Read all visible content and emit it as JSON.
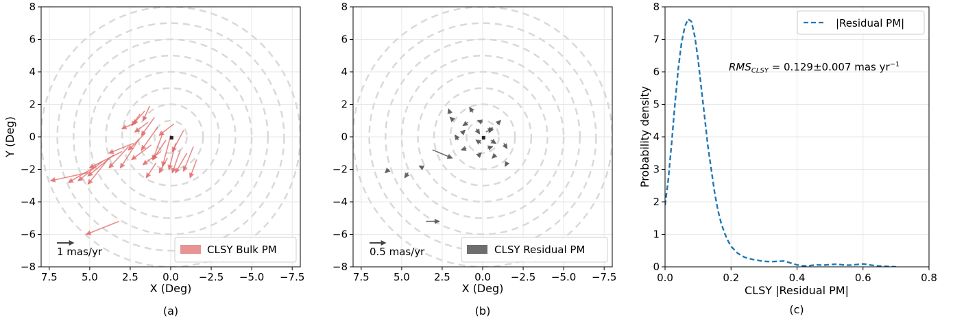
{
  "chart_data": [
    {
      "type": "scatter",
      "subtype": "quiver",
      "panel_label": "(a)",
      "xlabel": "X (Deg)",
      "ylabel": "Y (Deg)",
      "xlim": [
        8,
        -8
      ],
      "ylim": [
        -8,
        8
      ],
      "x_ticks": [
        "7.5",
        "5.0",
        "2.5",
        "0.0",
        "−2.5",
        "−5.0",
        "−7.5"
      ],
      "y_ticks": [
        "8",
        "6",
        "4",
        "2",
        "0",
        "−2",
        "−4",
        "−6",
        "−8"
      ],
      "grid": true,
      "circle_radii": [
        1,
        2,
        3,
        4,
        5,
        6,
        7,
        8
      ],
      "legend": {
        "label": "CLSY Bulk PM",
        "position": "lower right"
      },
      "scale_key": {
        "label": "1 mas/yr",
        "length": 1
      },
      "arrow_color": "#e06666",
      "arrows_note": "arrows point toward lower-left; displacements given in degrees on the plot",
      "arrows": [
        {
          "x": 3.2,
          "y": -5.2,
          "dx": 2.0,
          "dy": -0.8
        },
        {
          "x": 5.1,
          "y": -2.2,
          "dx": 2.3,
          "dy": -0.5
        },
        {
          "x": 4.6,
          "y": -1.8,
          "dx": 1.7,
          "dy": -1.0
        },
        {
          "x": 4.2,
          "y": -1.5,
          "dx": 1.5,
          "dy": -1.2
        },
        {
          "x": 3.8,
          "y": -1.3,
          "dx": 1.3,
          "dy": -1.6
        },
        {
          "x": 3.5,
          "y": -1.1,
          "dx": 1.6,
          "dy": -1.3
        },
        {
          "x": 3.0,
          "y": -0.9,
          "dx": 2.0,
          "dy": -1.0
        },
        {
          "x": 2.6,
          "y": -0.6,
          "dx": 1.2,
          "dy": -1.3
        },
        {
          "x": 2.3,
          "y": -0.4,
          "dx": 1.5,
          "dy": -0.6
        },
        {
          "x": 2.1,
          "y": 0.9,
          "dx": 0.9,
          "dy": -0.4
        },
        {
          "x": 1.9,
          "y": 1.4,
          "dx": 0.5,
          "dy": -0.7
        },
        {
          "x": 1.6,
          "y": 1.6,
          "dx": 0.7,
          "dy": -0.8
        },
        {
          "x": 1.3,
          "y": 1.9,
          "dx": 0.4,
          "dy": -0.9
        },
        {
          "x": 1.0,
          "y": 1.2,
          "dx": 0.8,
          "dy": -1.1
        },
        {
          "x": 0.8,
          "y": 0.6,
          "dx": 1.0,
          "dy": -1.4
        },
        {
          "x": 0.5,
          "y": 0.2,
          "dx": 0.6,
          "dy": -1.6
        },
        {
          "x": 0.3,
          "y": -0.2,
          "dx": 0.8,
          "dy": -1.2
        },
        {
          "x": 0.0,
          "y": 0.1,
          "dx": 0.5,
          "dy": -1.9
        },
        {
          "x": -0.3,
          "y": -0.4,
          "dx": 0.4,
          "dy": -1.6
        },
        {
          "x": -0.6,
          "y": -0.8,
          "dx": 0.5,
          "dy": -1.4
        },
        {
          "x": -1.0,
          "y": -1.0,
          "dx": 0.7,
          "dy": -1.2
        },
        {
          "x": -1.4,
          "y": -0.6,
          "dx": 0.6,
          "dy": -1.5
        },
        {
          "x": -1.6,
          "y": -1.4,
          "dx": 0.4,
          "dy": -1.1
        },
        {
          "x": -0.2,
          "y": 0.8,
          "dx": 0.9,
          "dy": -0.7
        },
        {
          "x": 0.6,
          "y": -0.9,
          "dx": 1.1,
          "dy": -0.8
        },
        {
          "x": 1.2,
          "y": -0.5,
          "dx": 1.2,
          "dy": -0.9
        },
        {
          "x": 1.6,
          "y": 0.2,
          "dx": 1.0,
          "dy": -1.0
        },
        {
          "x": 2.0,
          "y": -0.2,
          "dx": 1.1,
          "dy": -1.7
        },
        {
          "x": 0.9,
          "y": -1.6,
          "dx": 0.6,
          "dy": -0.9
        },
        {
          "x": -0.8,
          "y": 0.4,
          "dx": 0.7,
          "dy": -1.3
        },
        {
          "x": 0.2,
          "y": -1.3,
          "dx": 0.5,
          "dy": -0.9
        },
        {
          "x": 1.4,
          "y": 0.9,
          "dx": 0.8,
          "dy": -0.6
        }
      ]
    },
    {
      "type": "scatter",
      "subtype": "quiver",
      "panel_label": "(b)",
      "xlabel": "X (Deg)",
      "ylabel": "",
      "xlim": [
        8,
        -8
      ],
      "ylim": [
        -8,
        8
      ],
      "x_ticks": [
        "7.5",
        "5.0",
        "2.5",
        "0.0",
        "−2.5",
        "−5.0",
        "−7.5"
      ],
      "y_ticks": [
        "8",
        "6",
        "4",
        "2",
        "0",
        "−2",
        "−4",
        "−6",
        "−8"
      ],
      "grid": true,
      "circle_radii": [
        1,
        2,
        3,
        4,
        5,
        6,
        7,
        8
      ],
      "legend": {
        "label": "CLSY Residual PM",
        "position": "lower right"
      },
      "scale_key": {
        "label": "0.5 mas/yr",
        "length": 1
      },
      "arrow_color": "#555555",
      "arrows": [
        {
          "x": 3.5,
          "y": -5.2,
          "dx": -0.8,
          "dy": 0.0
        },
        {
          "x": 3.1,
          "y": -0.8,
          "dx": -1.2,
          "dy": -0.5
        },
        {
          "x": 4.6,
          "y": -2.2,
          "dx": 0.2,
          "dy": -0.3
        },
        {
          "x": 5.8,
          "y": -2.0,
          "dx": 0.2,
          "dy": -0.2
        },
        {
          "x": 3.7,
          "y": -1.9,
          "dx": 0.2,
          "dy": 0.1
        },
        {
          "x": 0.9,
          "y": 0.9,
          "dx": 0.3,
          "dy": -0.2
        },
        {
          "x": 0.4,
          "y": 0.5,
          "dx": -0.2,
          "dy": -0.3
        },
        {
          "x": -0.2,
          "y": 0.3,
          "dx": -0.4,
          "dy": 0.2
        },
        {
          "x": -0.5,
          "y": -0.2,
          "dx": -0.3,
          "dy": -0.2
        },
        {
          "x": 0.1,
          "y": -0.4,
          "dx": 0.3,
          "dy": 0.2
        },
        {
          "x": 1.3,
          "y": 0.2,
          "dx": -0.2,
          "dy": 0.2
        },
        {
          "x": 1.8,
          "y": 1.0,
          "dx": 0.2,
          "dy": 0.2
        },
        {
          "x": 0.6,
          "y": 1.5,
          "dx": 0.2,
          "dy": 0.3
        },
        {
          "x": -0.9,
          "y": 0.8,
          "dx": -0.2,
          "dy": 0.2
        },
        {
          "x": -1.3,
          "y": -0.4,
          "dx": -0.2,
          "dy": -0.3
        },
        {
          "x": -0.8,
          "y": -1.1,
          "dx": 0.2,
          "dy": -0.2
        },
        {
          "x": 0.3,
          "y": -1.2,
          "dx": -0.2,
          "dy": 0.2
        },
        {
          "x": 1.0,
          "y": -0.7,
          "dx": 0.3,
          "dy": -0.1
        },
        {
          "x": -1.5,
          "y": -1.6,
          "dx": 0.1,
          "dy": -0.2
        },
        {
          "x": 1.5,
          "y": -0.2,
          "dx": 0.2,
          "dy": 0.3
        },
        {
          "x": 0.0,
          "y": 0.9,
          "dx": 0.3,
          "dy": 0.1
        },
        {
          "x": -0.3,
          "y": -0.7,
          "dx": -0.3,
          "dy": 0.1
        },
        {
          "x": 2.0,
          "y": 1.4,
          "dx": 0.1,
          "dy": 0.3
        },
        {
          "x": -0.6,
          "y": 0.6,
          "dx": 0.2,
          "dy": -0.3
        }
      ]
    },
    {
      "type": "line",
      "panel_label": "(c)",
      "xlabel": "CLSY |Residual PM|",
      "ylabel": "Probability density",
      "xlim": [
        0.0,
        0.8
      ],
      "ylim": [
        0,
        8
      ],
      "x_ticks": [
        "0.0",
        "0.2",
        "0.4",
        "0.6",
        "0.8"
      ],
      "y_ticks": [
        "0",
        "1",
        "2",
        "3",
        "4",
        "5",
        "6",
        "7",
        "8"
      ],
      "grid": true,
      "legend": {
        "position": "upper right"
      },
      "annotation": {
        "main": "RMS",
        "sub": "CLSY",
        "rest": " = 0.129±0.007 mas yr",
        "sup": "−1"
      },
      "series": [
        {
          "name": "|Residual PM|",
          "color": "#1f77b4",
          "linestyle": "dashed",
          "x": [
            0.0,
            0.01,
            0.02,
            0.03,
            0.04,
            0.05,
            0.06,
            0.07,
            0.08,
            0.09,
            0.1,
            0.11,
            0.12,
            0.13,
            0.14,
            0.15,
            0.16,
            0.17,
            0.18,
            0.19,
            0.2,
            0.22,
            0.24,
            0.26,
            0.28,
            0.3,
            0.32,
            0.34,
            0.36,
            0.38,
            0.4,
            0.42,
            0.44,
            0.46,
            0.48,
            0.5,
            0.52,
            0.54,
            0.56,
            0.58,
            0.6,
            0.62,
            0.64,
            0.66,
            0.68,
            0.7
          ],
          "y": [
            1.9,
            2.7,
            3.8,
            5.0,
            6.1,
            6.9,
            7.4,
            7.62,
            7.55,
            7.1,
            6.4,
            5.5,
            4.6,
            3.7,
            3.0,
            2.3,
            1.75,
            1.35,
            1.05,
            0.82,
            0.63,
            0.42,
            0.3,
            0.24,
            0.2,
            0.17,
            0.16,
            0.17,
            0.18,
            0.12,
            0.06,
            0.03,
            0.04,
            0.06,
            0.05,
            0.07,
            0.08,
            0.06,
            0.05,
            0.07,
            0.09,
            0.06,
            0.03,
            0.02,
            0.01,
            0.0
          ]
        }
      ]
    }
  ]
}
